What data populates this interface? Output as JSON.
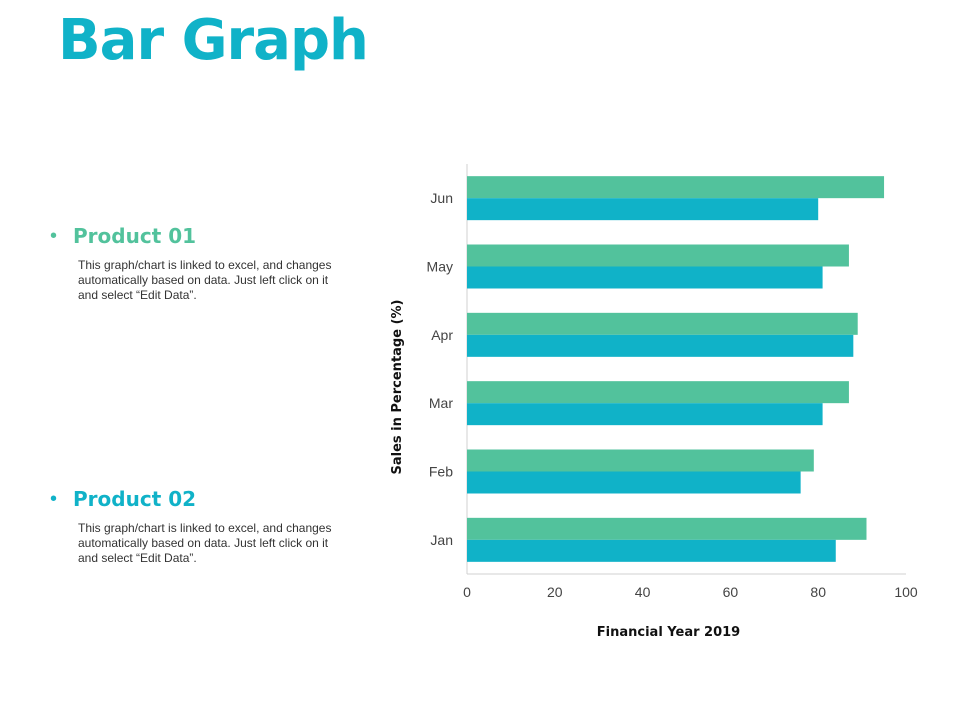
{
  "title": "Bar Graph",
  "legend": [
    {
      "name": "Product 01",
      "color": "#52c29c",
      "description": "This graph/chart is linked to excel, and changes automatically based on data. Just left click on it and select “Edit Data”."
    },
    {
      "name": "Product 02",
      "color": "#10b2c8",
      "description": "This graph/chart is linked to excel, and changes automatically based on data. Just left click on it and select “Edit Data”."
    }
  ],
  "chart_data": {
    "type": "bar",
    "orientation": "horizontal",
    "categories": [
      "Jan",
      "Feb",
      "Mar",
      "Apr",
      "May",
      "Jun"
    ],
    "series": [
      {
        "name": "Product 01",
        "color": "#52c29c",
        "values": [
          91,
          79,
          87,
          89,
          87,
          95
        ]
      },
      {
        "name": "Product 02",
        "color": "#10b2c8",
        "values": [
          84,
          76,
          81,
          88,
          81,
          80
        ]
      }
    ],
    "xlabel": "Financial Year 2019",
    "ylabel": "Sales in Percentage (%)",
    "xlim": [
      0,
      100
    ],
    "xticks": [
      "0",
      "20",
      "40",
      "60",
      "80",
      "100"
    ],
    "grid": false,
    "legend_placement": "left"
  }
}
